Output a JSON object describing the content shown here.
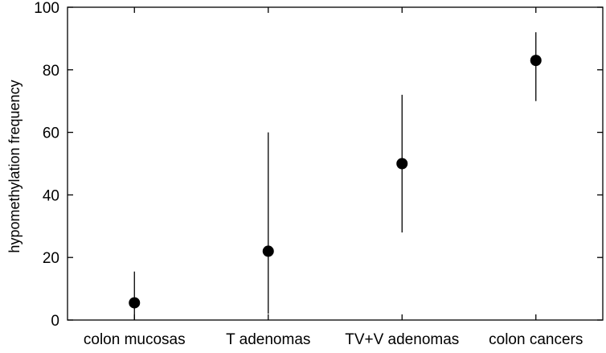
{
  "chart_data": {
    "type": "scatter",
    "title": "",
    "xlabel": "",
    "ylabel": "hypomethylation frequency",
    "ylim": [
      0,
      100
    ],
    "yticks": [
      0,
      20,
      40,
      60,
      80,
      100
    ],
    "grid": false,
    "categories": [
      "colon mucosas",
      "T adenomas",
      "TV+V adenomas",
      "colon cancers"
    ],
    "series": [
      {
        "values": [
          5.5,
          22,
          50,
          83
        ],
        "error_low": [
          0,
          2,
          28,
          70
        ],
        "error_high": [
          15.5,
          60,
          72,
          92
        ]
      }
    ],
    "colors": {
      "marker": "#000000",
      "error_bar": "#000000",
      "axes": "#000000"
    }
  }
}
